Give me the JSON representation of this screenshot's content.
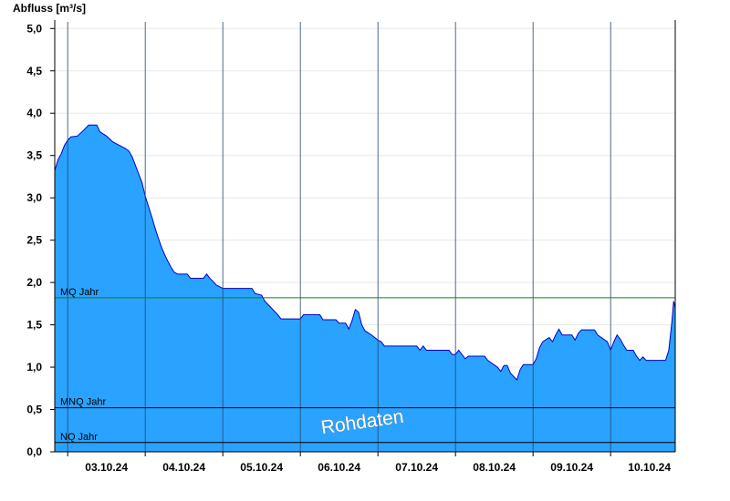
{
  "chart_data": {
    "type": "area",
    "ylabel": "Abfluss [m³/s]",
    "ylim": [
      0,
      5.1
    ],
    "yticks": [
      {
        "value": 0.0,
        "label": "0,0"
      },
      {
        "value": 0.5,
        "label": "0,5"
      },
      {
        "value": 1.0,
        "label": "1,0"
      },
      {
        "value": 1.5,
        "label": "1,5"
      },
      {
        "value": 2.0,
        "label": "2,0"
      },
      {
        "value": 2.5,
        "label": "2,5"
      },
      {
        "value": 3.0,
        "label": "3,0"
      },
      {
        "value": 3.5,
        "label": "3,5"
      },
      {
        "value": 4.0,
        "label": "4,0"
      },
      {
        "value": 4.5,
        "label": "4,5"
      },
      {
        "value": 5.0,
        "label": "5,0"
      }
    ],
    "xlim": [
      "2024-10-02T20:00",
      "2024-10-10T20:00"
    ],
    "day_boundaries": [
      "2024-10-03T00:00",
      "2024-10-04T00:00",
      "2024-10-05T00:00",
      "2024-10-06T00:00",
      "2024-10-07T00:00",
      "2024-10-08T00:00",
      "2024-10-09T00:00",
      "2024-10-10T00:00"
    ],
    "xticks": [
      {
        "date": "2024-10-03T12:00",
        "label": "03.10.24"
      },
      {
        "date": "2024-10-04T12:00",
        "label": "04.10.24"
      },
      {
        "date": "2024-10-05T12:00",
        "label": "05.10.24"
      },
      {
        "date": "2024-10-06T12:00",
        "label": "06.10.24"
      },
      {
        "date": "2024-10-07T12:00",
        "label": "07.10.24"
      },
      {
        "date": "2024-10-08T12:00",
        "label": "08.10.24"
      },
      {
        "date": "2024-10-09T12:00",
        "label": "09.10.24"
      },
      {
        "date": "2024-10-10T12:00",
        "label": "10.10.24"
      }
    ],
    "grid": true,
    "reference_lines": [
      {
        "name": "MQ Jahr",
        "value": 1.82,
        "color": "#1a7a1a"
      },
      {
        "name": "MNQ Jahr",
        "value": 0.52,
        "color": "#000000"
      },
      {
        "name": "NQ Jahr",
        "value": 0.11,
        "color": "#000000"
      }
    ],
    "series": [
      {
        "fill": "#29a3ff",
        "line": "#0000cc",
        "points": [
          [
            "2024-10-02T20:00",
            3.32
          ],
          [
            "2024-10-02T21:00",
            3.45
          ],
          [
            "2024-10-02T22:00",
            3.52
          ],
          [
            "2024-10-02T23:00",
            3.62
          ],
          [
            "2024-10-03T00:00",
            3.68
          ],
          [
            "2024-10-03T01:00",
            3.72
          ],
          [
            "2024-10-03T03:00",
            3.73
          ],
          [
            "2024-10-03T05:00",
            3.8
          ],
          [
            "2024-10-03T06:30",
            3.86
          ],
          [
            "2024-10-03T09:00",
            3.86
          ],
          [
            "2024-10-03T10:00",
            3.78
          ],
          [
            "2024-10-03T12:00",
            3.73
          ],
          [
            "2024-10-03T14:00",
            3.66
          ],
          [
            "2024-10-03T16:00",
            3.62
          ],
          [
            "2024-10-03T18:00",
            3.58
          ],
          [
            "2024-10-03T19:00",
            3.55
          ],
          [
            "2024-10-03T20:00",
            3.48
          ],
          [
            "2024-10-03T21:00",
            3.38
          ],
          [
            "2024-10-03T22:00",
            3.28
          ],
          [
            "2024-10-03T23:00",
            3.18
          ],
          [
            "2024-10-04T00:00",
            3.02
          ],
          [
            "2024-10-04T01:00",
            2.9
          ],
          [
            "2024-10-04T02:00",
            2.78
          ],
          [
            "2024-10-04T03:00",
            2.65
          ],
          [
            "2024-10-04T04:00",
            2.53
          ],
          [
            "2024-10-04T05:00",
            2.42
          ],
          [
            "2024-10-04T06:00",
            2.33
          ],
          [
            "2024-10-04T07:00",
            2.25
          ],
          [
            "2024-10-04T08:00",
            2.18
          ],
          [
            "2024-10-04T09:00",
            2.12
          ],
          [
            "2024-10-04T10:00",
            2.1
          ],
          [
            "2024-10-04T13:00",
            2.1
          ],
          [
            "2024-10-04T14:00",
            2.05
          ],
          [
            "2024-10-04T18:00",
            2.05
          ],
          [
            "2024-10-04T19:00",
            2.1
          ],
          [
            "2024-10-04T20:00",
            2.05
          ],
          [
            "2024-10-04T22:00",
            1.97
          ],
          [
            "2024-10-05T00:00",
            1.93
          ],
          [
            "2024-10-05T09:00",
            1.93
          ],
          [
            "2024-10-05T10:00",
            1.87
          ],
          [
            "2024-10-05T12:00",
            1.85
          ],
          [
            "2024-10-05T13:00",
            1.78
          ],
          [
            "2024-10-05T15:00",
            1.7
          ],
          [
            "2024-10-05T17:00",
            1.62
          ],
          [
            "2024-10-05T18:00",
            1.57
          ],
          [
            "2024-10-06T00:00",
            1.57
          ],
          [
            "2024-10-06T01:00",
            1.62
          ],
          [
            "2024-10-06T06:00",
            1.62
          ],
          [
            "2024-10-06T07:00",
            1.56
          ],
          [
            "2024-10-06T11:00",
            1.56
          ],
          [
            "2024-10-06T12:00",
            1.52
          ],
          [
            "2024-10-06T14:00",
            1.52
          ],
          [
            "2024-10-06T15:00",
            1.45
          ],
          [
            "2024-10-06T16:00",
            1.55
          ],
          [
            "2024-10-06T17:00",
            1.68
          ],
          [
            "2024-10-06T18:00",
            1.65
          ],
          [
            "2024-10-06T19:00",
            1.5
          ],
          [
            "2024-10-06T20:00",
            1.43
          ],
          [
            "2024-10-06T22:00",
            1.38
          ],
          [
            "2024-10-07T00:00",
            1.32
          ],
          [
            "2024-10-07T01:00",
            1.3
          ],
          [
            "2024-10-07T02:00",
            1.25
          ],
          [
            "2024-10-07T12:00",
            1.25
          ],
          [
            "2024-10-07T13:00",
            1.2
          ],
          [
            "2024-10-07T14:00",
            1.25
          ],
          [
            "2024-10-07T15:00",
            1.2
          ],
          [
            "2024-10-07T22:00",
            1.2
          ],
          [
            "2024-10-07T23:00",
            1.15
          ],
          [
            "2024-10-08T00:00",
            1.15
          ],
          [
            "2024-10-08T01:00",
            1.2
          ],
          [
            "2024-10-08T02:00",
            1.15
          ],
          [
            "2024-10-08T03:00",
            1.1
          ],
          [
            "2024-10-08T04:00",
            1.13
          ],
          [
            "2024-10-08T09:00",
            1.13
          ],
          [
            "2024-10-08T10:00",
            1.08
          ],
          [
            "2024-10-08T13:00",
            1.0
          ],
          [
            "2024-10-08T14:00",
            0.95
          ],
          [
            "2024-10-08T15:00",
            1.02
          ],
          [
            "2024-10-08T16:00",
            1.02
          ],
          [
            "2024-10-08T17:00",
            0.93
          ],
          [
            "2024-10-08T19:00",
            0.85
          ],
          [
            "2024-10-08T20:00",
            0.97
          ],
          [
            "2024-10-08T21:00",
            1.03
          ],
          [
            "2024-10-09T00:00",
            1.03
          ],
          [
            "2024-10-09T01:00",
            1.1
          ],
          [
            "2024-10-09T02:00",
            1.23
          ],
          [
            "2024-10-09T03:00",
            1.3
          ],
          [
            "2024-10-09T05:00",
            1.35
          ],
          [
            "2024-10-09T06:00",
            1.3
          ],
          [
            "2024-10-09T07:00",
            1.38
          ],
          [
            "2024-10-09T08:00",
            1.45
          ],
          [
            "2024-10-09T09:00",
            1.38
          ],
          [
            "2024-10-09T12:00",
            1.38
          ],
          [
            "2024-10-09T13:00",
            1.32
          ],
          [
            "2024-10-09T14:00",
            1.4
          ],
          [
            "2024-10-09T15:00",
            1.44
          ],
          [
            "2024-10-09T19:00",
            1.44
          ],
          [
            "2024-10-09T20:00",
            1.38
          ],
          [
            "2024-10-09T23:00",
            1.3
          ],
          [
            "2024-10-10T00:00",
            1.2
          ],
          [
            "2024-10-10T01:00",
            1.3
          ],
          [
            "2024-10-10T02:00",
            1.38
          ],
          [
            "2024-10-10T03:00",
            1.33
          ],
          [
            "2024-10-10T04:00",
            1.26
          ],
          [
            "2024-10-10T05:00",
            1.2
          ],
          [
            "2024-10-10T07:00",
            1.2
          ],
          [
            "2024-10-10T08:00",
            1.13
          ],
          [
            "2024-10-10T09:00",
            1.08
          ],
          [
            "2024-10-10T10:00",
            1.12
          ],
          [
            "2024-10-10T11:00",
            1.08
          ],
          [
            "2024-10-10T17:00",
            1.08
          ],
          [
            "2024-10-10T18:00",
            1.2
          ],
          [
            "2024-10-10T19:00",
            1.55
          ],
          [
            "2024-10-10T19:30",
            1.78
          ],
          [
            "2024-10-10T20:00",
            1.7
          ]
        ]
      }
    ],
    "watermark": "Rohdaten"
  }
}
